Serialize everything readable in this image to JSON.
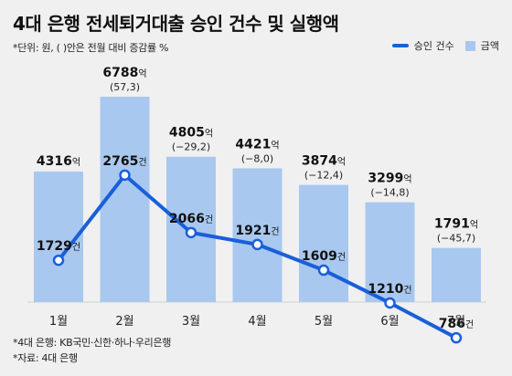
{
  "title": "4대 은행 전세퇴거대출 승인 건수 및 실행액",
  "note": "*단위: 원, ( )안은 전월 대비 증감률 %",
  "legend": {
    "line_label": "승인 건수",
    "bar_label": "금액"
  },
  "footer": {
    "line1": "*4대 은행: KB국민·신한·하나·우리은행",
    "line2": "*자료: 4대 은행"
  },
  "colors": {
    "bar": "#a9c8ef",
    "line": "#1a5fd9",
    "background": "#f0f0f0"
  },
  "chart_data": {
    "type": "bar",
    "categories": [
      "1월",
      "2월",
      "3월",
      "4월",
      "5월",
      "6월",
      "7월"
    ],
    "series": [
      {
        "name": "금액",
        "type": "bar",
        "values": [
          4316,
          6788,
          4805,
          4421,
          3874,
          3299,
          1791
        ],
        "unit": "억",
        "changes": [
          "",
          "(57,3)",
          "(−29,2)",
          "(−8,0)",
          "(−12,4)",
          "(−14,8)",
          "(−45,7)"
        ]
      },
      {
        "name": "승인 건수",
        "type": "line",
        "values": [
          1729,
          2765,
          2066,
          1921,
          1609,
          1210,
          786
        ],
        "unit": "건"
      }
    ]
  }
}
